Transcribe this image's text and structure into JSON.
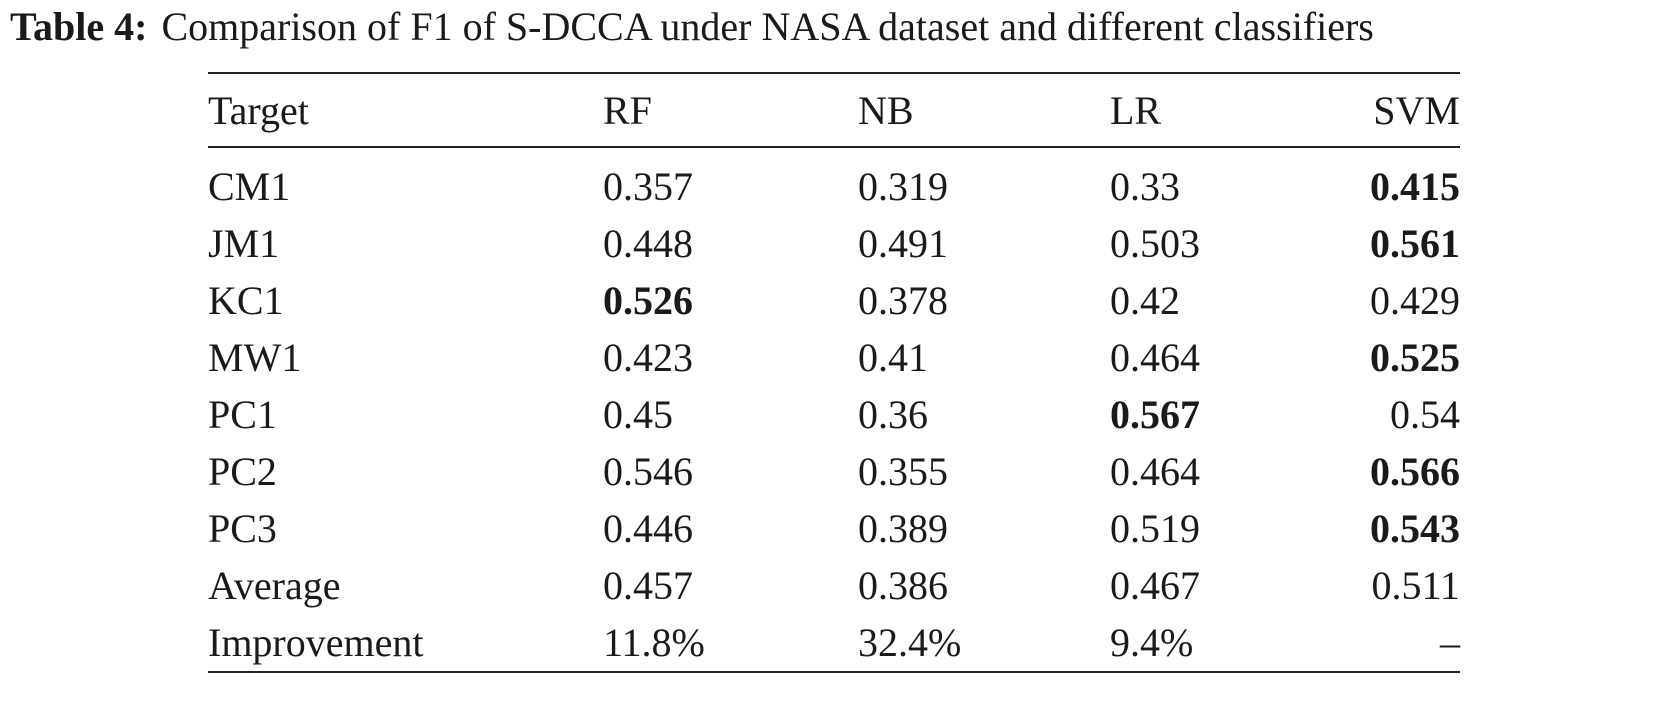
{
  "caption": {
    "label": "Table 4:",
    "text": "Comparison of F1 of S-DCCA under NASA dataset and different classifiers"
  },
  "table": {
    "headers": [
      "Target",
      "RF",
      "NB",
      "LR",
      "SVM"
    ],
    "rows": [
      {
        "cells": [
          "CM1",
          "0.357",
          "0.319",
          "0.33",
          "0.415"
        ],
        "best": [
          4
        ]
      },
      {
        "cells": [
          "JM1",
          "0.448",
          "0.491",
          "0.503",
          "0.561"
        ],
        "best": [
          4
        ]
      },
      {
        "cells": [
          "KC1",
          "0.526",
          "0.378",
          "0.42",
          "0.429"
        ],
        "best": [
          1
        ]
      },
      {
        "cells": [
          "MW1",
          "0.423",
          "0.41",
          "0.464",
          "0.525"
        ],
        "best": [
          4
        ]
      },
      {
        "cells": [
          "PC1",
          "0.45",
          "0.36",
          "0.567",
          "0.54"
        ],
        "best": [
          3
        ]
      },
      {
        "cells": [
          "PC2",
          "0.546",
          "0.355",
          "0.464",
          "0.566"
        ],
        "best": [
          4
        ]
      },
      {
        "cells": [
          "PC3",
          "0.446",
          "0.389",
          "0.519",
          "0.543"
        ],
        "best": [
          4
        ]
      },
      {
        "cells": [
          "Average",
          "0.457",
          "0.386",
          "0.467",
          "0.511"
        ],
        "best": []
      },
      {
        "cells": [
          "Improvement",
          "11.8%",
          "32.4%",
          "9.4%",
          "–"
        ],
        "best": []
      }
    ]
  }
}
